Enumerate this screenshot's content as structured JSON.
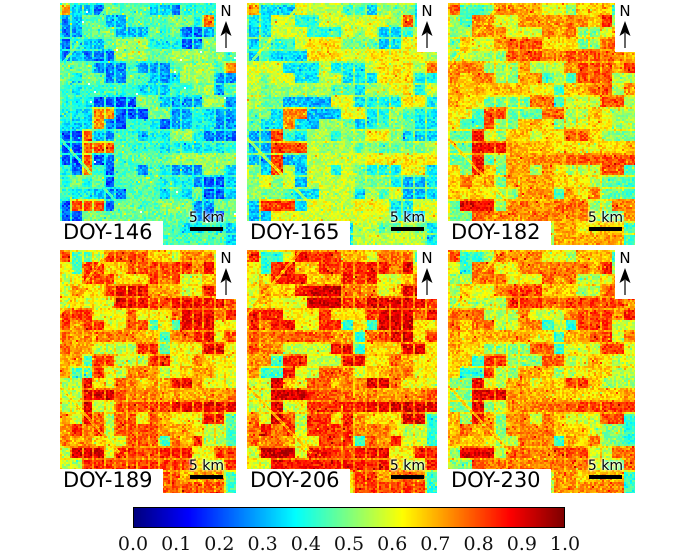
{
  "figure": {
    "background": "#ffffff",
    "description": "Six-date vegetation index maps"
  },
  "map_decorations": {
    "north_label": "N",
    "scalebar_label": "5 km"
  },
  "panels": [
    {
      "label": "DOY-146",
      "render": {
        "base": 0.2,
        "range": 0.34,
        "hot": 0.76,
        "cool": 0.33,
        "speckle": true
      }
    },
    {
      "label": "DOY-165",
      "render": {
        "base": 0.3,
        "range": 0.35,
        "hot": 0.78,
        "cool": 0.36,
        "speckle": false
      }
    },
    {
      "label": "DOY-182",
      "render": {
        "base": 0.47,
        "range": 0.33,
        "hot": 0.84,
        "cool": 0.44,
        "speckle": false
      }
    },
    {
      "label": "DOY-189",
      "render": {
        "base": 0.54,
        "range": 0.34,
        "hot": 0.87,
        "cool": 0.45,
        "speckle": false
      }
    },
    {
      "label": "DOY-206",
      "render": {
        "base": 0.56,
        "range": 0.35,
        "hot": 0.88,
        "cool": 0.42,
        "speckle": false
      }
    },
    {
      "label": "DOY-230",
      "render": {
        "base": 0.5,
        "range": 0.32,
        "hot": 0.86,
        "cool": 0.42,
        "speckle": false
      }
    }
  ],
  "colorbar": {
    "colormap": "jet",
    "min": 0.0,
    "max": 1.0,
    "ticks": [
      "0.0",
      "0.1",
      "0.2",
      "0.3",
      "0.4",
      "0.5",
      "0.6",
      "0.7",
      "0.8",
      "0.9",
      "1.0"
    ]
  },
  "chart_data": {
    "type": "heatmap",
    "title": "",
    "panels": [
      {
        "label": "DOY-146",
        "approx_mean_index": 0.37
      },
      {
        "label": "DOY-165",
        "approx_mean_index": 0.48
      },
      {
        "label": "DOY-182",
        "approx_mean_index": 0.63
      },
      {
        "label": "DOY-189",
        "approx_mean_index": 0.71
      },
      {
        "label": "DOY-206",
        "approx_mean_index": 0.73
      },
      {
        "label": "DOY-230",
        "approx_mean_index": 0.66
      }
    ],
    "colorbar": {
      "range": [
        0.0,
        1.0
      ],
      "ticks": [
        0.0,
        0.1,
        0.2,
        0.3,
        0.4,
        0.5,
        0.6,
        0.7,
        0.8,
        0.9,
        1.0
      ],
      "colormap": "jet",
      "orientation": "horizontal",
      "position": "bottom"
    },
    "layout": {
      "rows": 2,
      "cols": 3,
      "grid": true
    }
  }
}
